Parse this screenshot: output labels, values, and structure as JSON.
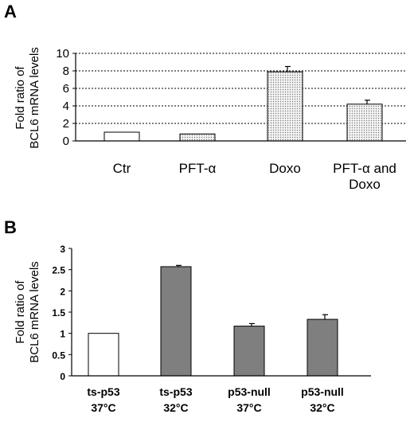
{
  "chart_data": [
    {
      "panel_label": "A",
      "type": "bar",
      "ylabel": [
        "Fold ratio of",
        "BCL6 mRNA levels"
      ],
      "ylim": [
        0,
        10
      ],
      "yticks": [
        "0",
        "2",
        "4",
        "6",
        "8",
        "10"
      ],
      "grid": "horizontal dotted",
      "categories": [
        [
          "Ctr"
        ],
        [
          "PFT-α"
        ],
        [
          "Doxo"
        ],
        [
          "PFT-α and",
          "Doxo"
        ]
      ],
      "values": [
        1.0,
        0.8,
        7.9,
        4.2
      ],
      "errors": [
        0,
        0,
        0.6,
        0.45
      ],
      "bar_fills": [
        "white",
        "dotted",
        "dotted",
        "dotted"
      ]
    },
    {
      "panel_label": "B",
      "type": "bar",
      "ylabel": [
        "Fold ratio of",
        "BCL6 mRNA levels"
      ],
      "ylim": [
        0,
        3
      ],
      "yticks": [
        "0",
        "0.5",
        "1",
        "1.5",
        "2",
        "2.5",
        "3"
      ],
      "grid": "none",
      "categories": [
        [
          "ts-p53",
          "37°C"
        ],
        [
          "ts-p53",
          "32°C"
        ],
        [
          "p53-null",
          "37°C"
        ],
        [
          "p53-null",
          "32°C"
        ]
      ],
      "values": [
        1.0,
        2.57,
        1.17,
        1.33
      ],
      "errors": [
        0,
        0.03,
        0.06,
        0.11
      ],
      "bar_fills": [
        "white",
        "gray",
        "gray",
        "gray"
      ]
    }
  ],
  "colors": {
    "gray_bar": "#7f7f7f",
    "dot_fill": "#d9d9d9"
  }
}
